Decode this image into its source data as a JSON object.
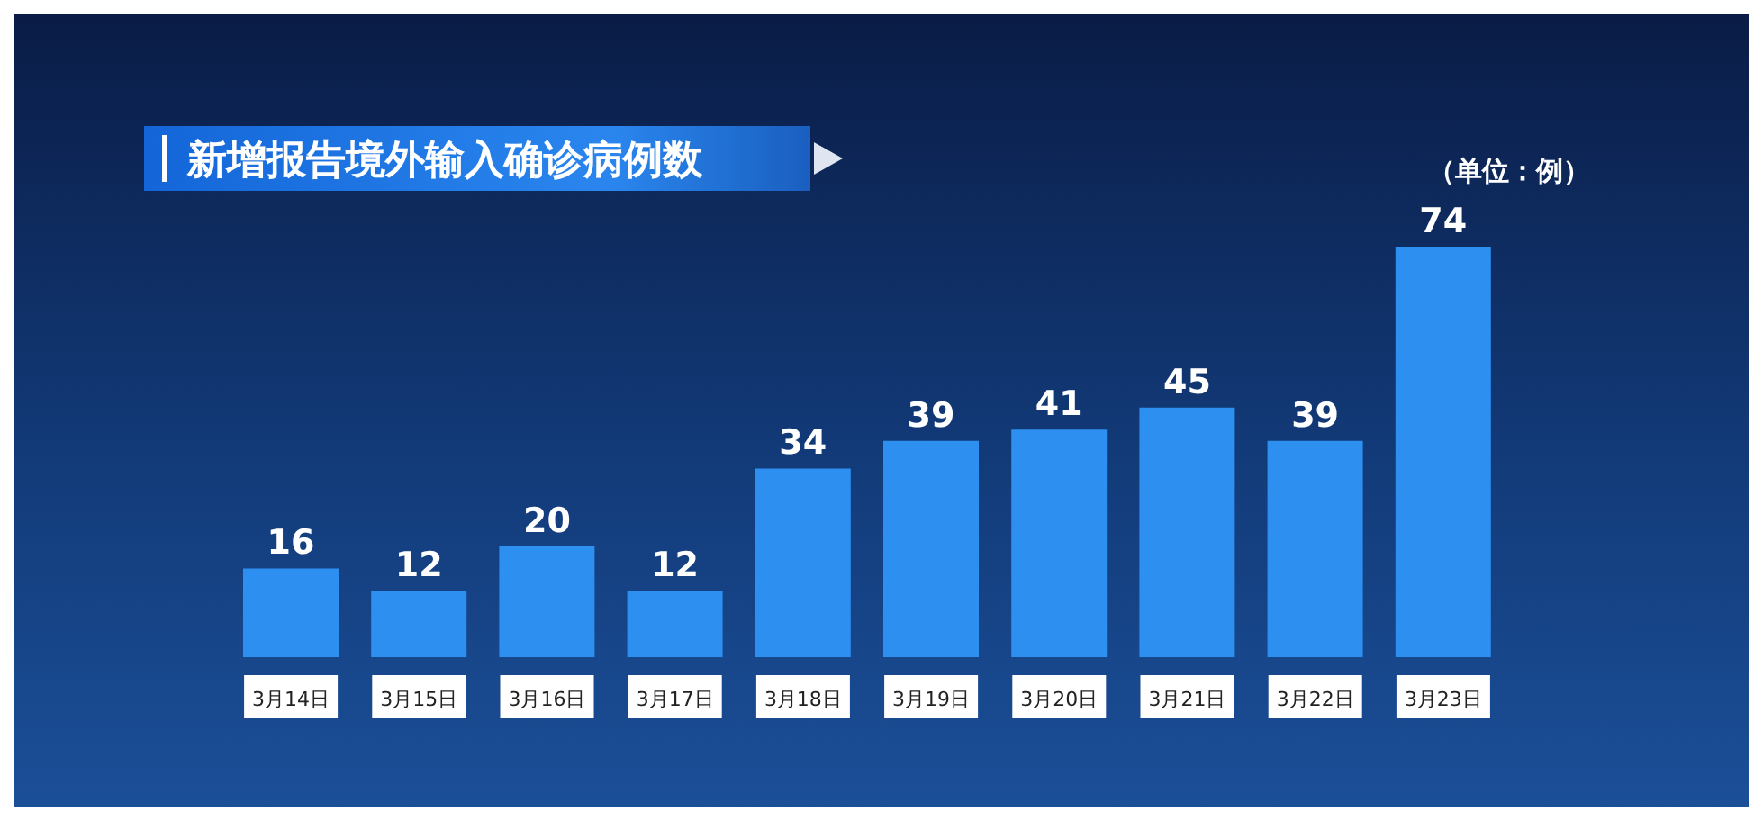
{
  "chart_data": {
    "type": "bar",
    "title": "新增报告境外输入确诊病例数",
    "annotations": [
      "（单位：例）"
    ],
    "categories": [
      "3月14日",
      "3月15日",
      "3月16日",
      "3月17日",
      "3月18日",
      "3月19日",
      "3月20日",
      "3月21日",
      "3月22日",
      "3月23日"
    ],
    "values": [
      16,
      12,
      20,
      12,
      34,
      39,
      41,
      45,
      39,
      74
    ],
    "color": "#2d8ff0",
    "data_labels": true
  }
}
